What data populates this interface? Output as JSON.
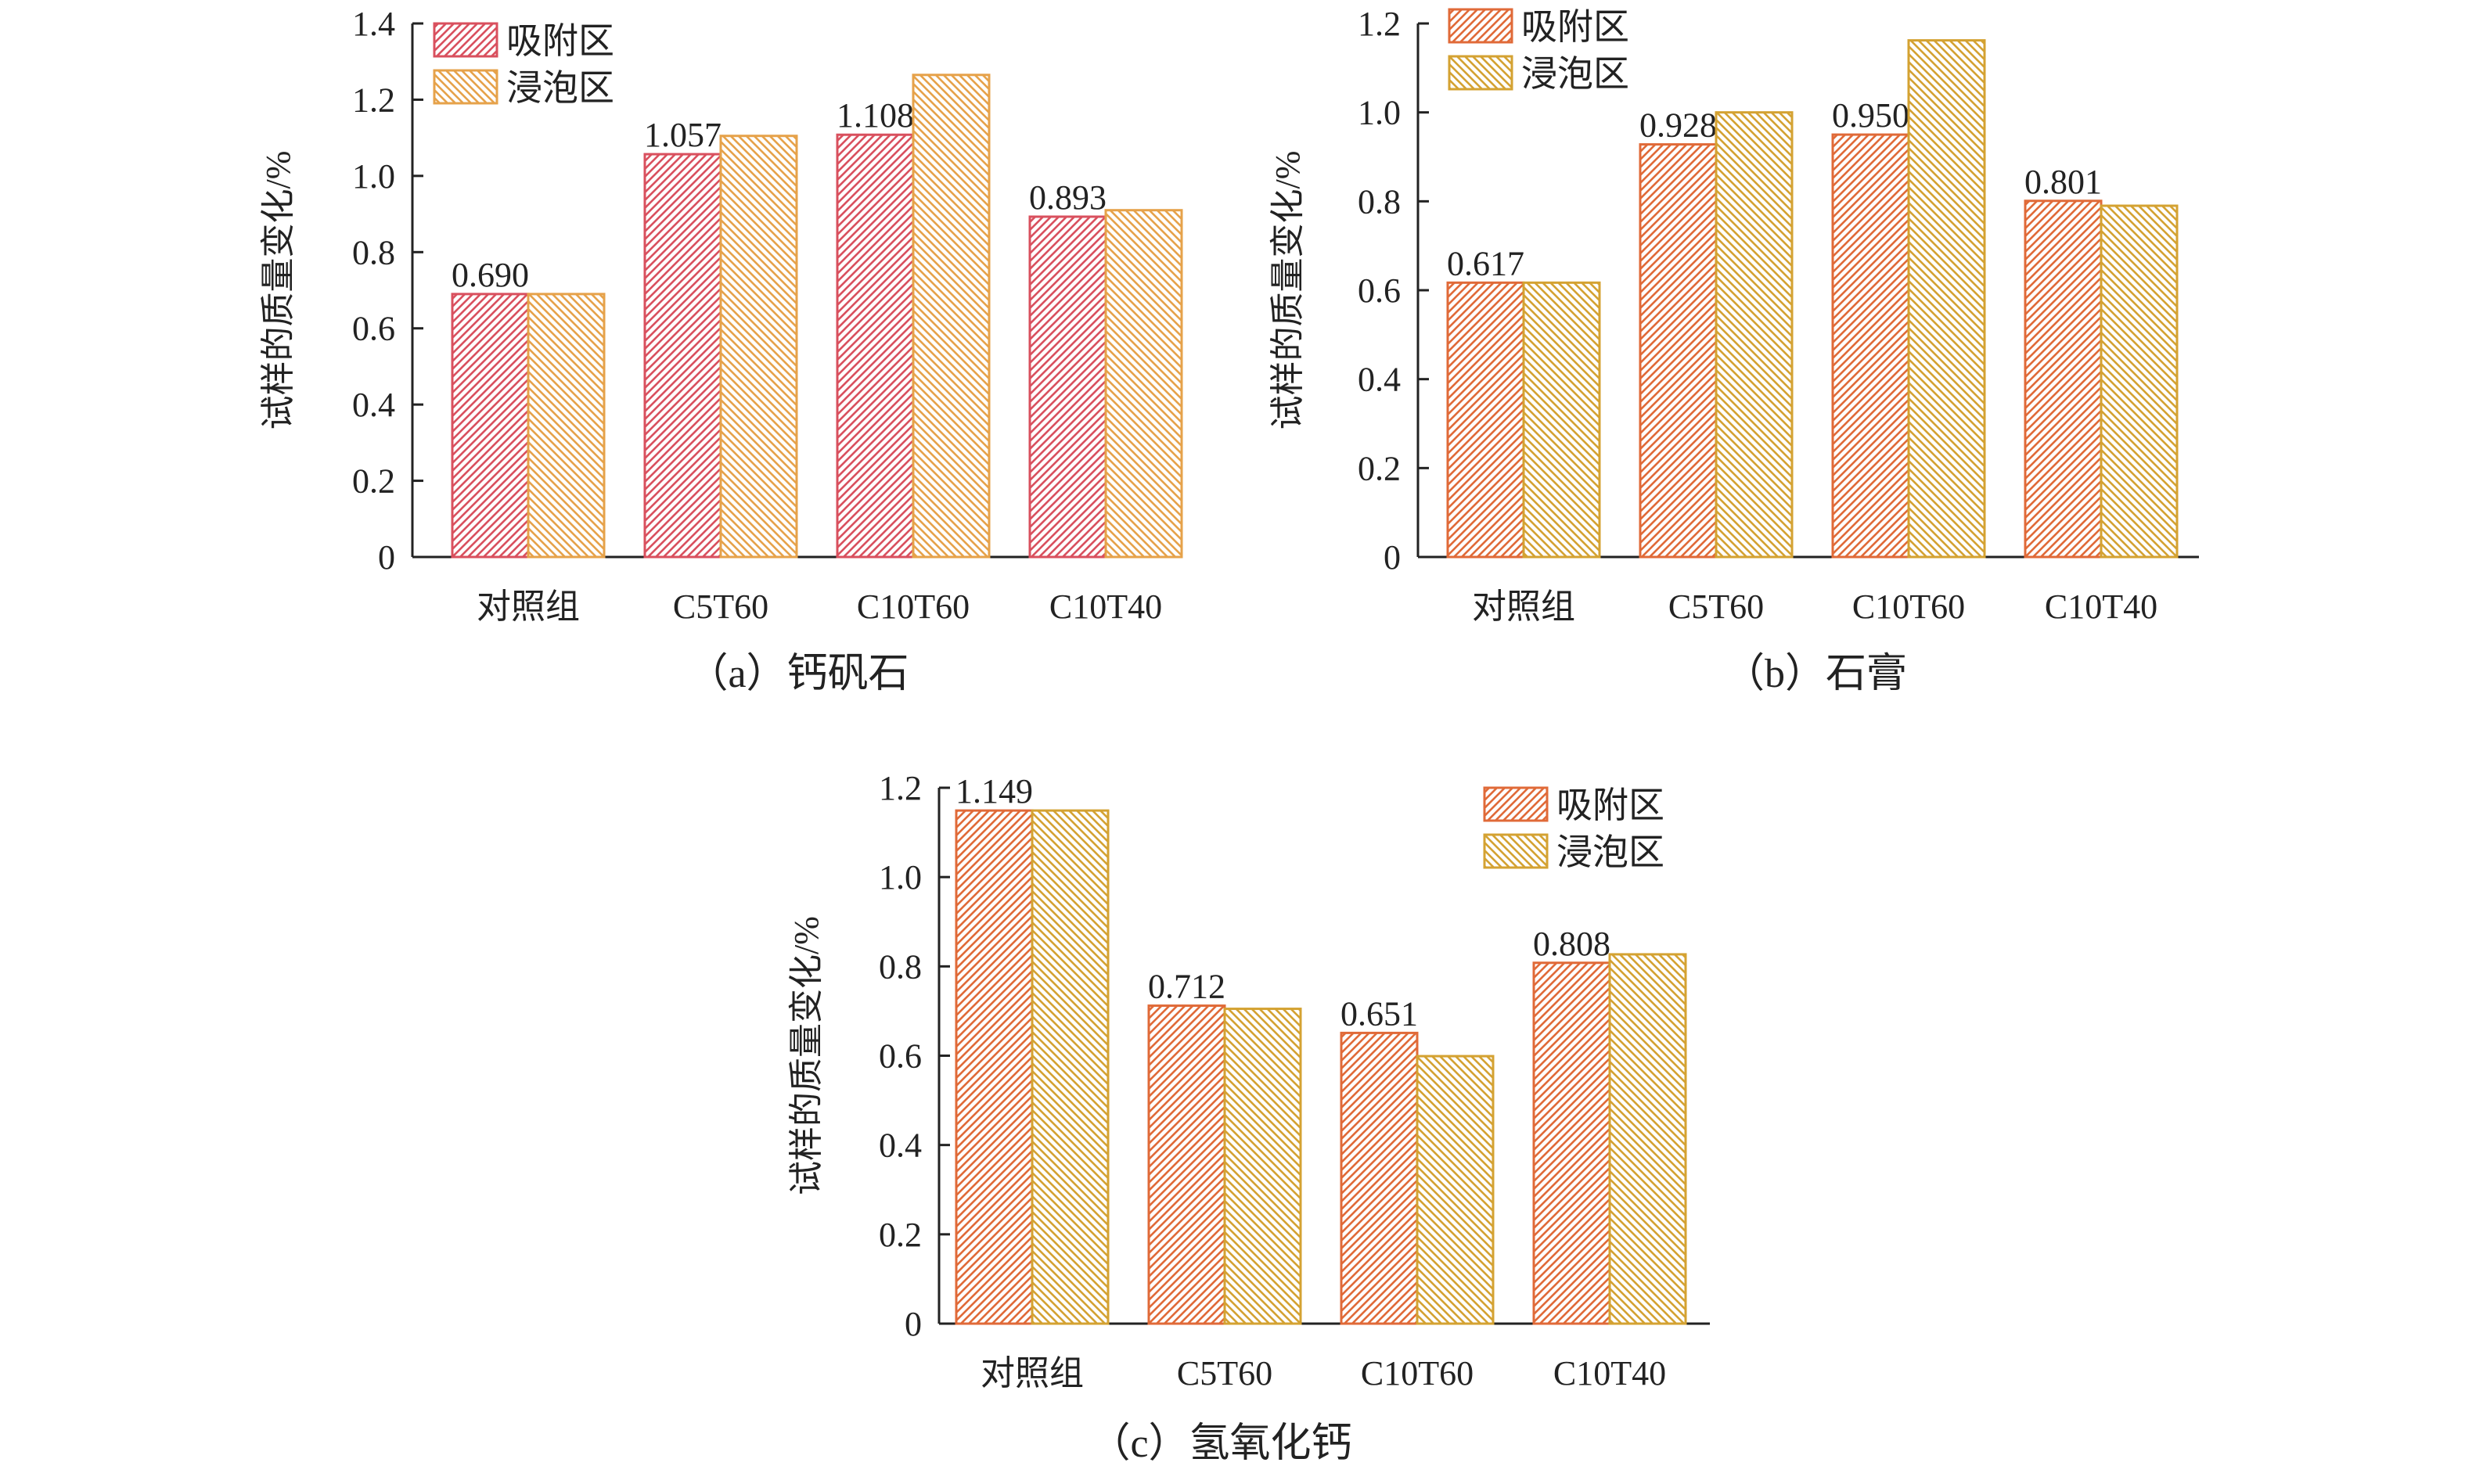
{
  "colors": {
    "a_adsorb": "#d9505e",
    "a_soak": "#e6a24a",
    "bc_adsorb": "#e06a38",
    "bc_soak": "#d4a232",
    "axis": "#222222"
  },
  "chart_data": [
    {
      "type": "bar",
      "caption": "（a）钙矾石",
      "ylabel": "试样的质量变化/%",
      "categories": [
        "对照组",
        "C5T60",
        "C10T60",
        "C10T40"
      ],
      "ylim": [
        0,
        1.4
      ],
      "yticks": [
        "0",
        "0.2",
        "0.4",
        "0.6",
        "0.8",
        "1.0",
        "1.2",
        "1.4"
      ],
      "legend": [
        "吸附区",
        "浸泡区"
      ],
      "legend_position": "top-left",
      "series": [
        {
          "name": "吸附区",
          "values": [
            0.69,
            1.057,
            1.108,
            0.893
          ],
          "labels": [
            "0.690",
            "1.057",
            "1.108",
            "0.893"
          ]
        },
        {
          "name": "浸泡区",
          "values": [
            0.69,
            1.105,
            1.265,
            0.91
          ]
        }
      ]
    },
    {
      "type": "bar",
      "caption": "（b）石膏",
      "ylabel": "试样的质量变化/%",
      "categories": [
        "对照组",
        "C5T60",
        "C10T60",
        "C10T40"
      ],
      "ylim": [
        0,
        1.2
      ],
      "yticks": [
        "0",
        "0.2",
        "0.4",
        "0.6",
        "0.8",
        "1.0",
        "1.2"
      ],
      "legend": [
        "吸附区",
        "浸泡区"
      ],
      "legend_position": "top-left",
      "series": [
        {
          "name": "吸附区",
          "values": [
            0.617,
            0.928,
            0.95,
            0.801
          ],
          "labels": [
            "0.617",
            "0.928",
            "0.950",
            "0.801"
          ]
        },
        {
          "name": "浸泡区",
          "values": [
            0.617,
            1.0,
            1.162,
            0.79
          ]
        }
      ]
    },
    {
      "type": "bar",
      "caption": "（c）氢氧化钙",
      "ylabel": "试样的质量变化/%",
      "categories": [
        "对照组",
        "C5T60",
        "C10T60",
        "C10T40"
      ],
      "ylim": [
        0,
        1.2
      ],
      "yticks": [
        "0",
        "0.2",
        "0.4",
        "0.6",
        "0.8",
        "1.0",
        "1.2"
      ],
      "legend": [
        "吸附区",
        "浸泡区"
      ],
      "legend_position": "top-right",
      "series": [
        {
          "name": "吸附区",
          "values": [
            1.149,
            0.712,
            0.651,
            0.808
          ],
          "labels": [
            "1.149",
            "0.712",
            "0.651",
            "0.808"
          ]
        },
        {
          "name": "浸泡区",
          "values": [
            1.149,
            0.705,
            0.599,
            0.827
          ]
        }
      ]
    }
  ]
}
